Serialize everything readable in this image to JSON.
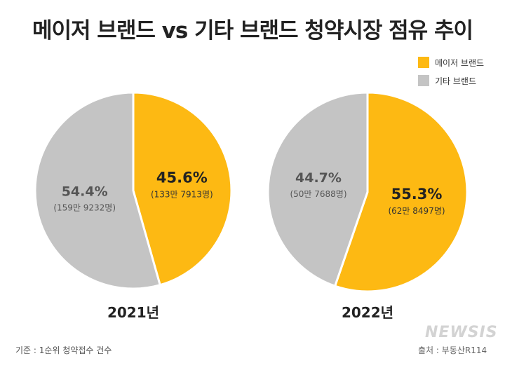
{
  "colors": {
    "major": "#FDB913",
    "other": "#C4C4C4"
  },
  "chart_data": {
    "type": "pie",
    "title": "메이저 브랜드 vs 기타 브랜드 청약시장 점유 추이",
    "legend": {
      "placement": "top-right",
      "entries": [
        "메이저 브랜드",
        "기타 브랜드"
      ]
    },
    "charts": [
      {
        "label": "2021년",
        "slices": [
          {
            "name": "메이저 브랜드",
            "value": 45.6,
            "pct_label": "45.6%",
            "count_label": "(133만 7913명)"
          },
          {
            "name": "기타 브랜드",
            "value": 54.4,
            "pct_label": "54.4%",
            "count_label": "(159만 9232명)"
          }
        ]
      },
      {
        "label": "2022년",
        "slices": [
          {
            "name": "메이저 브랜드",
            "value": 55.3,
            "pct_label": "55.3%",
            "count_label": "(62만 8497명)"
          },
          {
            "name": "기타 브랜드",
            "value": 44.7,
            "pct_label": "44.7%",
            "count_label": "(50만 7688명)"
          }
        ]
      }
    ]
  },
  "footer": {
    "basis": "기준 : 1순위 청약접수 건수",
    "source": "출처 : 부동산R114",
    "watermark": "NEWSIS"
  }
}
